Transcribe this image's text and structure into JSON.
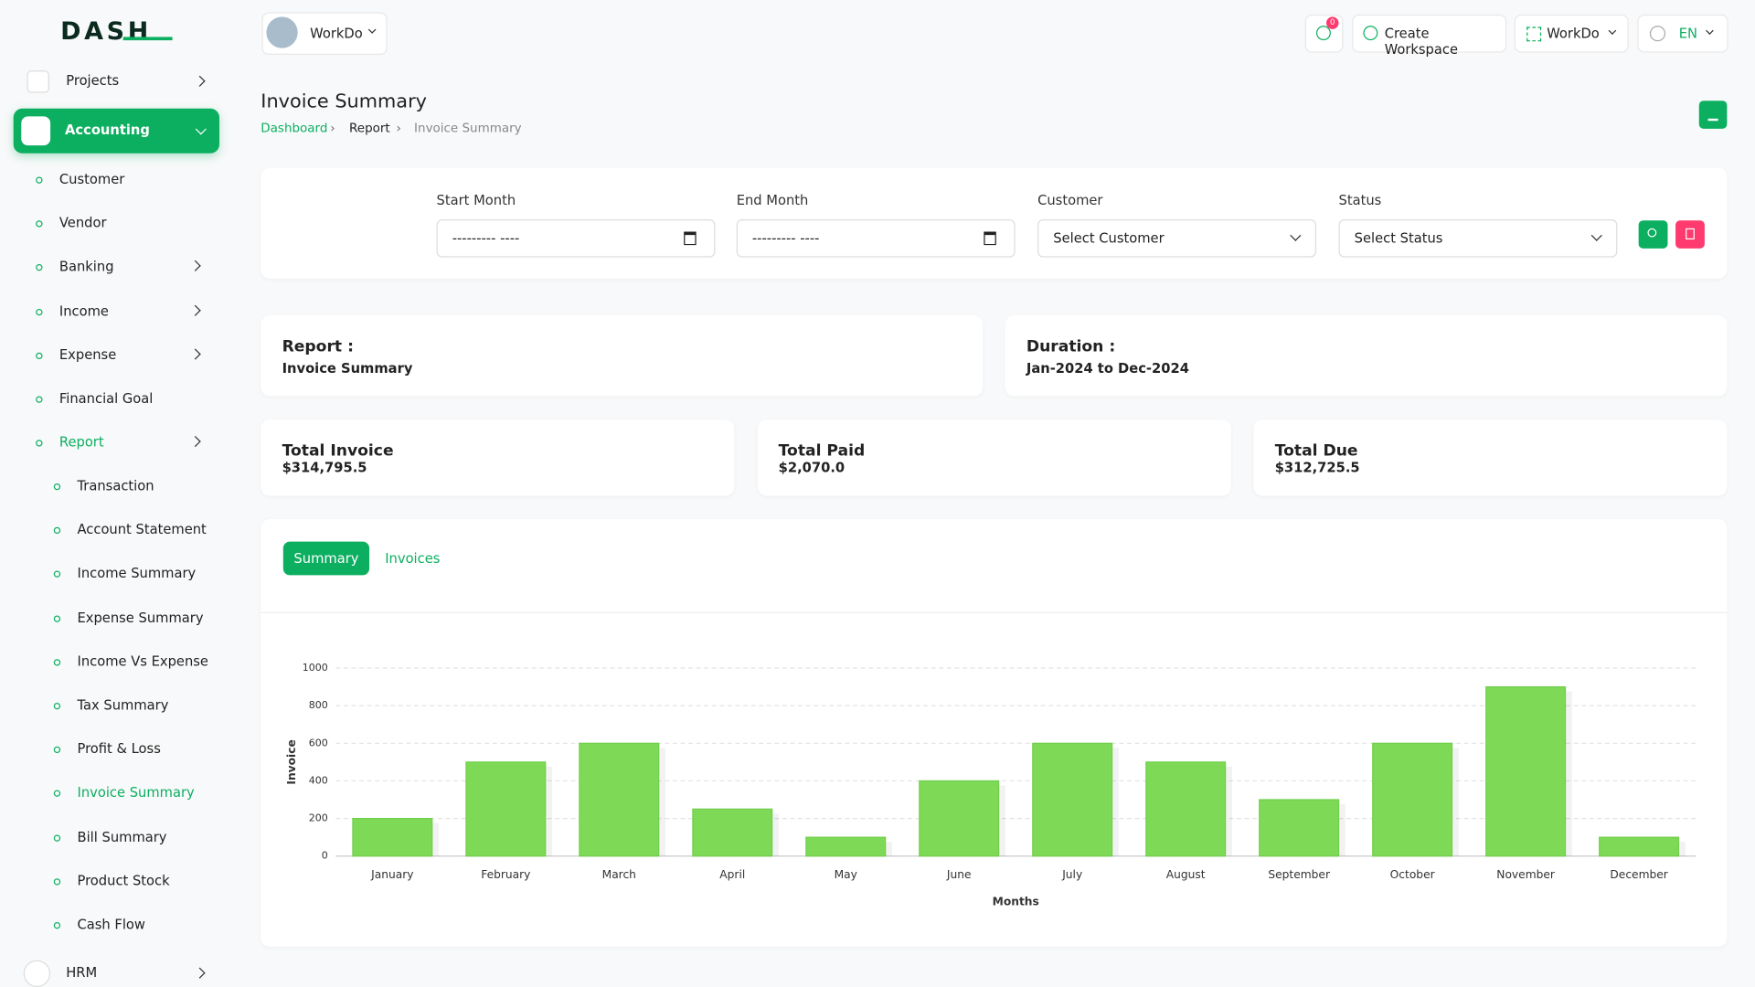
{
  "brand": "DASH",
  "topbar": {
    "workspace": "WorkDo",
    "notifications": 0,
    "create_workspace": "Create Workspace",
    "workspace_menu": "WorkDo",
    "language": "EN"
  },
  "sidebar": {
    "top": "Projects",
    "accounting": "Accounting",
    "accounting_items": [
      "Customer",
      "Vendor",
      "Banking",
      "Income",
      "Expense",
      "Financial Goal",
      "Report"
    ],
    "report_items": [
      "Transaction",
      "Account Statement",
      "Income Summary",
      "Expense Summary",
      "Income Vs Expense",
      "Tax Summary",
      "Profit & Loss",
      "Invoice Summary",
      "Bill Summary",
      "Product Stock",
      "Cash Flow"
    ],
    "bottom": "HRM"
  },
  "page": {
    "title": "Invoice Summary",
    "breadcrumb": [
      "Dashboard",
      "Report",
      "Invoice Summary"
    ]
  },
  "filters": {
    "start_month": {
      "label": "Start Month",
      "placeholder": "--------- ----"
    },
    "end_month": {
      "label": "End Month",
      "placeholder": "--------- ----"
    },
    "customer": {
      "label": "Customer",
      "placeholder": "Select Customer"
    },
    "status": {
      "label": "Status",
      "placeholder": "Select Status"
    }
  },
  "info": {
    "report_label": "Report :",
    "report_value": "Invoice Summary",
    "duration_label": "Duration :",
    "duration_value": "Jan-2024 to Dec-2024"
  },
  "totals": [
    {
      "label": "Total Invoice",
      "value": "$314,795.5"
    },
    {
      "label": "Total Paid",
      "value": "$2,070.0"
    },
    {
      "label": "Total Due",
      "value": "$312,725.5"
    }
  ],
  "tabs": [
    "Summary",
    "Invoices"
  ],
  "chart_data": {
    "type": "bar",
    "x_label": "Months",
    "y_label": "Invoice",
    "categories": [
      "January",
      "February",
      "March",
      "April",
      "May",
      "June",
      "July",
      "August",
      "September",
      "October",
      "November",
      "December"
    ],
    "values": [
      200,
      500,
      600,
      250,
      100,
      400,
      600,
      500,
      300,
      600,
      900,
      100
    ],
    "color": "#7ed957",
    "ylim": [
      0,
      1000
    ],
    "yticks": [
      0,
      200,
      400,
      600,
      800,
      1000
    ],
    "grid": true
  }
}
